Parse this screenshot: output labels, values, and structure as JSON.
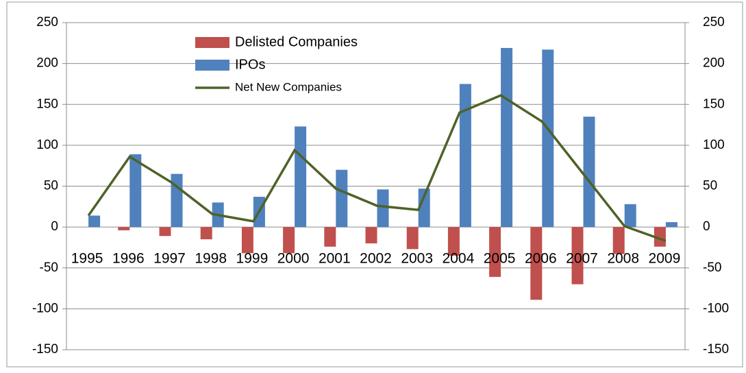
{
  "chart_data": {
    "type": "bar",
    "categories": [
      "1995",
      "1996",
      "1997",
      "1998",
      "1999",
      "2000",
      "2001",
      "2002",
      "2003",
      "2004",
      "2005",
      "2006",
      "2007",
      "2008",
      "2009"
    ],
    "series": [
      {
        "name": "Delisted Companies",
        "color": "#c0504d",
        "values": [
          0,
          -4,
          -11,
          -15,
          -32,
          -32,
          -24,
          -20,
          -27,
          -35,
          -61,
          -89,
          -70,
          -33,
          -24
        ]
      },
      {
        "name": "IPOs",
        "color": "#4f81bd",
        "values": [
          14,
          89,
          65,
          30,
          37,
          123,
          70,
          46,
          47,
          175,
          219,
          217,
          135,
          28,
          6
        ]
      },
      {
        "name": "Net New Companies",
        "color": "#4f6228",
        "type": "line",
        "values": [
          14,
          86,
          55,
          16,
          7,
          94,
          47,
          26,
          21,
          140,
          161,
          129,
          65,
          1,
          -17
        ]
      }
    ],
    "ylim": [
      -150,
      250
    ],
    "yticks": [
      -150,
      -100,
      -50,
      0,
      50,
      100,
      150,
      200,
      250
    ],
    "y2lim": [
      -150,
      250
    ],
    "y2ticks": [
      -150,
      -100,
      -50,
      0,
      50,
      100,
      150,
      200,
      250
    ],
    "grid": true,
    "legend": "top-left"
  }
}
